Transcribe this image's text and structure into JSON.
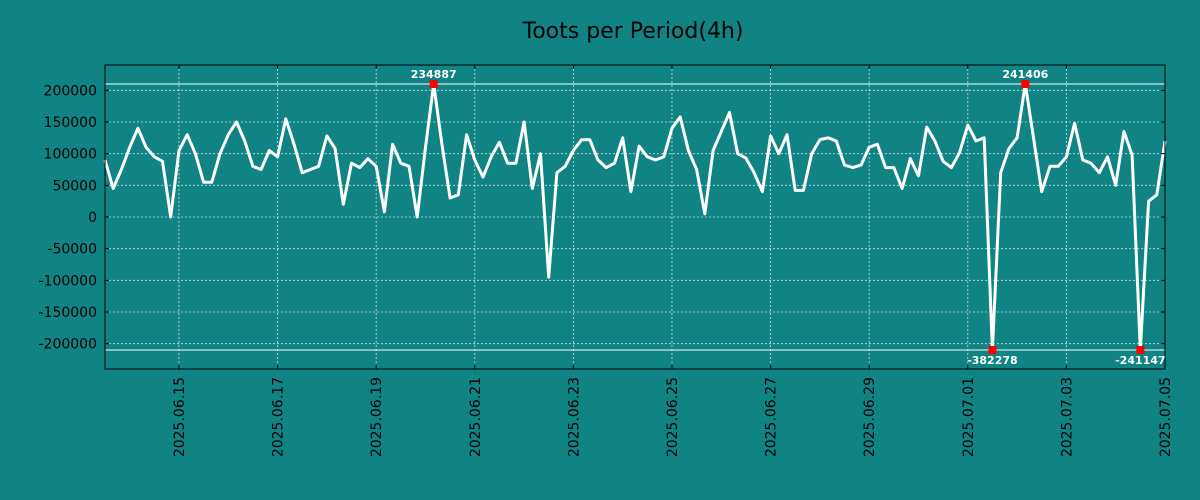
{
  "colors": {
    "background": "#108385",
    "line": "#ffffff",
    "marker": "#ff0000",
    "text": "#000000"
  },
  "chart_data": {
    "type": "line",
    "title": "Toots per Period(4h)",
    "xlabel": "",
    "ylabel": "",
    "grid": true,
    "ylim": [
      -240000,
      240000
    ],
    "xlim": [
      2025.0613,
      2025.0706
    ],
    "y_ticks": [
      200000,
      150000,
      100000,
      50000,
      0,
      -50000,
      -100000,
      -150000,
      -200000
    ],
    "y_tick_labels": [
      "200000",
      "150000",
      "100000",
      "50000",
      "0",
      "-50000",
      "-100000",
      "-150000",
      "-200000"
    ],
    "x_tick_labels": [
      "2025.06.15",
      "2025.06.17",
      "2025.06.19",
      "2025.06.21",
      "2025.06.23",
      "2025.06.25",
      "2025.06.27",
      "2025.06.29",
      "2025.07.01",
      "2025.07.03",
      "2025.07.05"
    ],
    "x_tick_day_index": [
      1.5,
      3.5,
      5.5,
      7.5,
      9.5,
      11.5,
      13.5,
      15.5,
      17.5,
      19.5,
      21.5
    ],
    "period_per_day": 6,
    "period_count": 130,
    "clip_upper": 210000,
    "clip_lower": -210000,
    "series": [
      {
        "name": "Toots",
        "values": [
          90000,
          45000,
          75000,
          110000,
          140000,
          110000,
          95000,
          88000,
          0,
          105000,
          130000,
          100000,
          55000,
          55000,
          100000,
          130000,
          150000,
          120000,
          80000,
          75000,
          105000,
          95000,
          155000,
          115000,
          70000,
          75000,
          80000,
          128000,
          108000,
          20000,
          85000,
          78000,
          92000,
          80000,
          8000,
          115000,
          85000,
          80000,
          0,
          110000,
          210000,
          115000,
          30000,
          35000,
          130000,
          90000,
          63000,
          95000,
          118000,
          85000,
          85000,
          150000,
          45000,
          100000,
          -95000,
          70000,
          80000,
          105000,
          122000,
          122000,
          90000,
          78000,
          85000,
          125000,
          40000,
          112000,
          95000,
          90000,
          95000,
          140000,
          158000,
          105000,
          75000,
          5000,
          105000,
          135000,
          165000,
          100000,
          93000,
          70000,
          40000,
          128000,
          100000,
          130000,
          42000,
          42000,
          100000,
          122000,
          125000,
          120000,
          82000,
          78000,
          82000,
          110000,
          115000,
          78000,
          78000,
          45000,
          92000,
          65000,
          142000,
          120000,
          88000,
          78000,
          102000,
          145000,
          120000,
          125000,
          -210000,
          70000,
          108000,
          125000,
          210000,
          125000,
          40000,
          80000,
          80000,
          95000,
          148000,
          90000,
          85000,
          70000,
          95000,
          50000,
          135000,
          98000,
          -210000,
          25000,
          35000,
          120000
        ]
      }
    ],
    "annotations": [
      {
        "label": "234887",
        "index": 40,
        "side": "top"
      },
      {
        "label": "241406",
        "index": 112,
        "side": "top"
      },
      {
        "label": "-382278",
        "index": 108,
        "side": "bottom"
      },
      {
        "label": "-241147",
        "index": 126,
        "side": "bottom"
      }
    ]
  }
}
